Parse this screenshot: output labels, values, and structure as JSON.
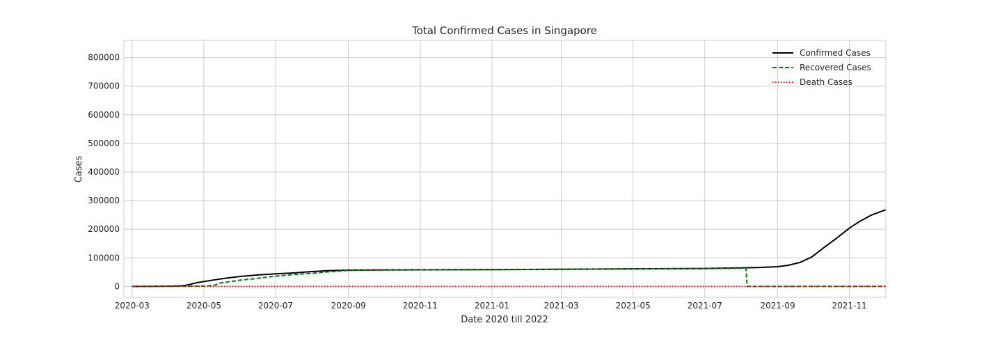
{
  "chart_data": {
    "type": "line",
    "title": "Total Confirmed Cases in Singapore",
    "xlabel": "Date 2020 till 2022",
    "ylabel": "Cases",
    "xlim": [
      "2020-02-23",
      "2021-12-02"
    ],
    "ylim": [
      -38000,
      860000
    ],
    "x_ticks": [
      "2020-03",
      "2020-05",
      "2020-07",
      "2020-09",
      "2020-11",
      "2021-01",
      "2021-03",
      "2021-05",
      "2021-07",
      "2021-09",
      "2021-11"
    ],
    "y_ticks": [
      0,
      100000,
      200000,
      300000,
      400000,
      500000,
      600000,
      700000,
      800000
    ],
    "grid": true,
    "legend_position": "top-right",
    "series": [
      {
        "name": "Confirmed Cases",
        "color": "#000000",
        "style": "solid",
        "points": [
          [
            "2020-03-01",
            100
          ],
          [
            "2020-03-15",
            250
          ],
          [
            "2020-04-01",
            1000
          ],
          [
            "2020-04-10",
            2000
          ],
          [
            "2020-04-15",
            3500
          ],
          [
            "2020-04-20",
            8000
          ],
          [
            "2020-04-25",
            13000
          ],
          [
            "2020-05-01",
            17000
          ],
          [
            "2020-05-10",
            23000
          ],
          [
            "2020-05-20",
            29000
          ],
          [
            "2020-06-01",
            35000
          ],
          [
            "2020-06-15",
            40000
          ],
          [
            "2020-07-01",
            44000
          ],
          [
            "2020-07-15",
            47000
          ],
          [
            "2020-08-01",
            52000
          ],
          [
            "2020-08-15",
            55000
          ],
          [
            "2020-09-01",
            57000
          ],
          [
            "2020-10-01",
            57800
          ],
          [
            "2020-11-01",
            58100
          ],
          [
            "2021-01-01",
            58800
          ],
          [
            "2021-03-01",
            60000
          ],
          [
            "2021-05-01",
            61500
          ],
          [
            "2021-07-01",
            62800
          ],
          [
            "2021-08-01",
            65000
          ],
          [
            "2021-08-15",
            66000
          ],
          [
            "2021-09-01",
            69000
          ],
          [
            "2021-09-10",
            74000
          ],
          [
            "2021-09-20",
            84000
          ],
          [
            "2021-09-30",
            103000
          ],
          [
            "2021-10-10",
            135000
          ],
          [
            "2021-10-20",
            165000
          ],
          [
            "2021-11-01",
            204000
          ],
          [
            "2021-11-10",
            228000
          ],
          [
            "2021-11-20",
            250000
          ],
          [
            "2021-12-02",
            268000
          ]
        ]
      },
      {
        "name": "Recovered Cases",
        "color": "#008000",
        "style": "dashed",
        "points": [
          [
            "2020-03-01",
            50
          ],
          [
            "2020-04-01",
            300
          ],
          [
            "2020-05-01",
            1200
          ],
          [
            "2020-05-10",
            4000
          ],
          [
            "2020-05-15",
            12000
          ],
          [
            "2020-06-01",
            22000
          ],
          [
            "2020-06-15",
            28000
          ],
          [
            "2020-07-01",
            36000
          ],
          [
            "2020-07-15",
            41000
          ],
          [
            "2020-08-01",
            46000
          ],
          [
            "2020-08-15",
            51000
          ],
          [
            "2020-09-01",
            56000
          ],
          [
            "2020-10-01",
            57600
          ],
          [
            "2020-11-01",
            58000
          ],
          [
            "2021-01-01",
            58700
          ],
          [
            "2021-03-01",
            59900
          ],
          [
            "2021-05-01",
            61300
          ],
          [
            "2021-07-01",
            62500
          ],
          [
            "2021-08-05",
            63500
          ],
          [
            "2021-08-06",
            0
          ],
          [
            "2021-12-02",
            0
          ]
        ]
      },
      {
        "name": "Death Cases",
        "color": "#ff0000",
        "style": "dotted",
        "points": [
          [
            "2020-03-01",
            0
          ],
          [
            "2021-09-01",
            55
          ],
          [
            "2021-12-02",
            700
          ]
        ]
      }
    ]
  }
}
